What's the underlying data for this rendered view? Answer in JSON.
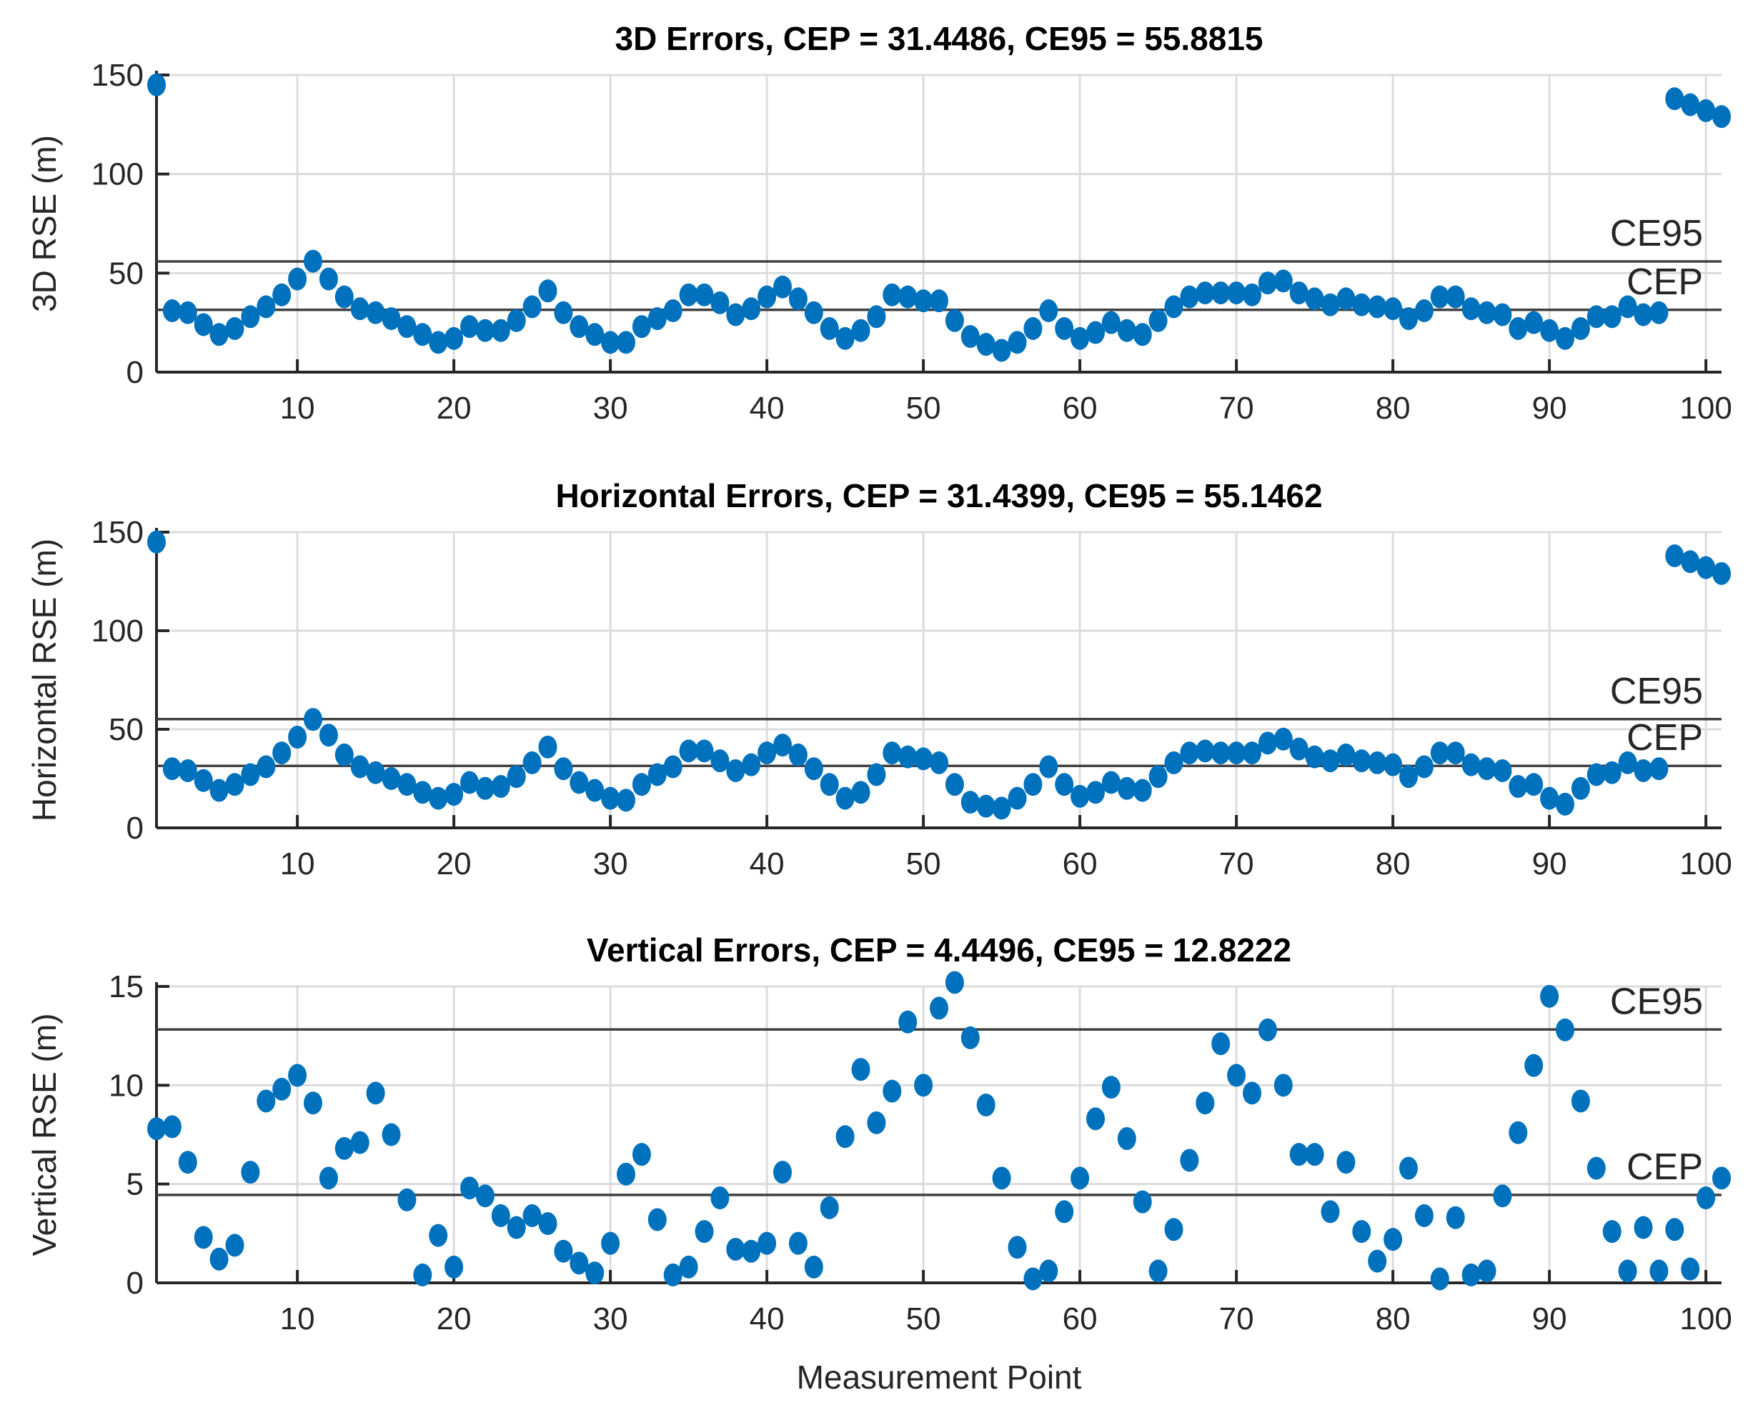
{
  "chart_data": [
    {
      "type": "scatter",
      "title": "3D Errors, CEP = 31.4486, CE95 = 55.8815",
      "xlabel": "",
      "ylabel": "3D RSE (m)",
      "xlim": [
        1,
        101
      ],
      "ylim": [
        0,
        150
      ],
      "xticks": [
        10,
        20,
        30,
        40,
        50,
        60,
        70,
        80,
        90,
        100
      ],
      "yticks": [
        0,
        50,
        100,
        150
      ],
      "grid": true,
      "marker_color": "#0072BD",
      "reference_lines": [
        {
          "label": "CE95",
          "value": 55.8815
        },
        {
          "label": "CEP",
          "value": 31.4486
        }
      ],
      "y": [
        145,
        31,
        30,
        24,
        19,
        22,
        28,
        33,
        39,
        47,
        56,
        47,
        38,
        32,
        30,
        27,
        23,
        19,
        15,
        17,
        23,
        21,
        21,
        26,
        33,
        41,
        30,
        23,
        19,
        15,
        15,
        23,
        27,
        31,
        39,
        39,
        35,
        29,
        32,
        38,
        43,
        37,
        30,
        22,
        17,
        21,
        28,
        39,
        38,
        36,
        36,
        26,
        18,
        14,
        11,
        15,
        22,
        31,
        22,
        17,
        20,
        25,
        21,
        19,
        26,
        33,
        38,
        40,
        40,
        40,
        39,
        45,
        46,
        40,
        37,
        34,
        37,
        34,
        33,
        32,
        27,
        31,
        38,
        38,
        32,
        30,
        29,
        22,
        25,
        21,
        17,
        22,
        28,
        28,
        33,
        29,
        30,
        138,
        135,
        132,
        129
      ]
    },
    {
      "type": "scatter",
      "title": "Horizontal Errors, CEP = 31.4399, CE95 = 55.1462",
      "xlabel": "",
      "ylabel": "Horizontal RSE (m)",
      "xlim": [
        1,
        101
      ],
      "ylim": [
        0,
        150
      ],
      "xticks": [
        10,
        20,
        30,
        40,
        50,
        60,
        70,
        80,
        90,
        100
      ],
      "yticks": [
        0,
        50,
        100,
        150
      ],
      "grid": true,
      "marker_color": "#0072BD",
      "reference_lines": [
        {
          "label": "CE95",
          "value": 55.1462
        },
        {
          "label": "CEP",
          "value": 31.4399
        }
      ],
      "y": [
        145,
        30,
        29,
        24,
        19,
        22,
        27,
        31,
        38,
        46,
        55,
        47,
        37,
        31,
        28,
        25,
        22,
        18,
        15,
        17,
        23,
        20,
        21,
        26,
        33,
        41,
        30,
        23,
        19,
        15,
        14,
        22,
        27,
        31,
        39,
        39,
        34,
        29,
        32,
        38,
        42,
        37,
        30,
        22,
        15,
        18,
        27,
        38,
        36,
        35,
        33,
        22,
        13,
        11,
        10,
        15,
        22,
        31,
        22,
        16,
        18,
        23,
        20,
        19,
        26,
        33,
        38,
        39,
        38,
        38,
        38,
        43,
        45,
        40,
        36,
        34,
        37,
        34,
        33,
        32,
        26,
        31,
        38,
        38,
        32,
        30,
        29,
        21,
        22,
        15,
        12,
        20,
        27,
        28,
        33,
        29,
        30,
        138,
        135,
        132,
        129
      ]
    },
    {
      "type": "scatter",
      "title": "Vertical Errors, CEP = 4.4496, CE95 = 12.8222",
      "xlabel": "Measurement Point",
      "ylabel": "Vertical RSE (m)",
      "xlim": [
        1,
        101
      ],
      "ylim": [
        0,
        15
      ],
      "xticks": [
        10,
        20,
        30,
        40,
        50,
        60,
        70,
        80,
        90,
        100
      ],
      "yticks": [
        0,
        5,
        10,
        15
      ],
      "grid": true,
      "marker_color": "#0072BD",
      "reference_lines": [
        {
          "label": "CE95",
          "value": 12.8222
        },
        {
          "label": "CEP",
          "value": 4.4496
        }
      ],
      "y": [
        7.8,
        7.9,
        6.1,
        2.3,
        1.2,
        1.9,
        5.6,
        9.2,
        9.8,
        10.5,
        9.1,
        5.3,
        6.8,
        7.1,
        9.6,
        7.5,
        4.2,
        0.4,
        2.4,
        0.8,
        4.8,
        4.4,
        3.4,
        2.8,
        3.4,
        3.0,
        1.6,
        1.0,
        0.5,
        2.0,
        5.5,
        6.5,
        3.2,
        0.4,
        0.8,
        2.6,
        4.3,
        1.7,
        1.6,
        2.0,
        5.6,
        2.0,
        0.8,
        3.8,
        7.4,
        10.8,
        8.1,
        9.7,
        13.2,
        10.0,
        13.9,
        15.2,
        12.4,
        9.0,
        5.3,
        1.8,
        0.2,
        0.6,
        3.6,
        5.3,
        8.3,
        9.9,
        7.3,
        4.1,
        0.6,
        2.7,
        6.2,
        9.1,
        12.1,
        10.5,
        9.6,
        12.8,
        10.0,
        6.5,
        6.5,
        3.6,
        6.1,
        2.6,
        1.1,
        2.2,
        5.8,
        3.4,
        0.2,
        3.3,
        0.4,
        0.6,
        4.4,
        7.6,
        11.0,
        14.5,
        12.8,
        9.2,
        5.8,
        2.6,
        0.6,
        2.8,
        0.6,
        2.7,
        0.7,
        4.3,
        5.3
      ]
    }
  ]
}
